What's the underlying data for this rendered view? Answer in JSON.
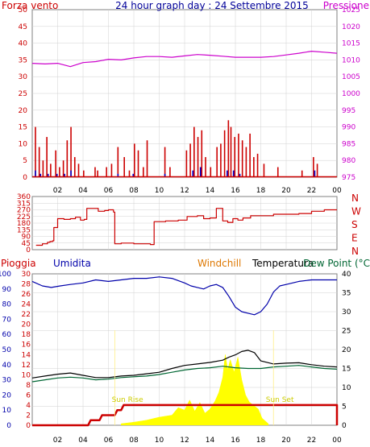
{
  "colors": {
    "wind": "#cc0000",
    "wind_avg": "#0000cc",
    "gust_alt": "#00aa00",
    "pressure": "#cc00cc",
    "direction": "#cc0000",
    "rain": "#cc0000",
    "humidity": "#0000aa",
    "windchill": "#dd7700",
    "temperature": "#000000",
    "dewpoint": "#006633",
    "solar": "#ffff00",
    "grid": "#d0d0d0",
    "frame": "#808080"
  },
  "chart_data": [
    {
      "type": "bar",
      "header": {
        "left": "Forza vento",
        "center": "24 hour graph day : 24 Settembre 2015",
        "right": "Pressione"
      },
      "x_ticks": [
        "02",
        "04",
        "06",
        "08",
        "10",
        "12",
        "14",
        "16",
        "18",
        "20",
        "22",
        "00"
      ],
      "y_left_ticks": [
        "50",
        "45",
        "40",
        "35",
        "30",
        "25",
        "20",
        "15",
        "10",
        "5",
        "0"
      ],
      "y_right_ticks": [
        "1025",
        "1020",
        "1015",
        "1010",
        "1005",
        "1000",
        "995",
        "990",
        "985",
        "980",
        "975"
      ],
      "ylim_left": [
        0,
        50
      ],
      "ylim_right": [
        975,
        1025
      ],
      "wind_bars": [
        [
          0.2,
          15
        ],
        [
          0.5,
          9
        ],
        [
          0.8,
          5
        ],
        [
          1.1,
          12
        ],
        [
          1.4,
          4
        ],
        [
          1.8,
          8
        ],
        [
          2.1,
          3
        ],
        [
          2.4,
          5
        ],
        [
          2.7,
          11
        ],
        [
          3.0,
          15
        ],
        [
          3.3,
          6
        ],
        [
          3.6,
          4
        ],
        [
          4.0,
          2
        ],
        [
          4.9,
          3
        ],
        [
          5.1,
          2
        ],
        [
          5.8,
          3
        ],
        [
          6.2,
          4
        ],
        [
          6.7,
          9
        ],
        [
          7.2,
          6
        ],
        [
          7.6,
          2
        ],
        [
          8.0,
          10
        ],
        [
          8.3,
          8
        ],
        [
          8.7,
          3
        ],
        [
          9.0,
          11
        ],
        [
          10.4,
          9
        ],
        [
          10.8,
          3
        ],
        [
          12.1,
          8
        ],
        [
          12.4,
          10
        ],
        [
          12.7,
          15
        ],
        [
          13.0,
          12
        ],
        [
          13.3,
          14
        ],
        [
          13.6,
          6
        ],
        [
          14.0,
          3
        ],
        [
          14.5,
          9
        ],
        [
          14.8,
          10
        ],
        [
          15.1,
          14
        ],
        [
          15.4,
          17
        ],
        [
          15.6,
          15
        ],
        [
          15.9,
          12
        ],
        [
          16.2,
          13
        ],
        [
          16.5,
          11
        ],
        [
          16.8,
          9
        ],
        [
          17.1,
          13
        ],
        [
          17.4,
          6
        ],
        [
          17.7,
          7
        ],
        [
          18.2,
          4
        ],
        [
          19.3,
          3
        ],
        [
          21.2,
          2
        ],
        [
          22.1,
          6
        ],
        [
          22.4,
          4
        ]
      ],
      "wind_avg_bars": [
        [
          0.2,
          2
        ],
        [
          0.6,
          1
        ],
        [
          1.2,
          1
        ],
        [
          1.9,
          1
        ],
        [
          2.5,
          1
        ],
        [
          3.0,
          2
        ],
        [
          6.7,
          1
        ],
        [
          7.9,
          1
        ],
        [
          10.4,
          1
        ],
        [
          12.6,
          2
        ],
        [
          13.2,
          3
        ],
        [
          15.3,
          2
        ],
        [
          15.8,
          2
        ],
        [
          16.3,
          1
        ],
        [
          22.2,
          2
        ]
      ],
      "pressure": [
        [
          0,
          1009
        ],
        [
          1,
          1008.8
        ],
        [
          2,
          1009
        ],
        [
          3,
          1008
        ],
        [
          4,
          1009.2
        ],
        [
          5,
          1009.5
        ],
        [
          6,
          1010.2
        ],
        [
          7,
          1010
        ],
        [
          8,
          1010.6
        ],
        [
          9,
          1011
        ],
        [
          10,
          1011
        ],
        [
          11,
          1010.8
        ],
        [
          12,
          1011.2
        ],
        [
          13,
          1011.6
        ],
        [
          14,
          1011.4
        ],
        [
          15,
          1011.1
        ],
        [
          16,
          1010.8
        ],
        [
          17,
          1010.8
        ],
        [
          18,
          1010.8
        ],
        [
          19,
          1011
        ],
        [
          20,
          1011.5
        ],
        [
          21,
          1012
        ],
        [
          22,
          1012.6
        ],
        [
          23,
          1012.3
        ],
        [
          24,
          1012
        ]
      ]
    },
    {
      "type": "line",
      "x_ticks": [
        "02",
        "04",
        "06",
        "08",
        "10",
        "12",
        "14",
        "16",
        "18",
        "20",
        "22",
        "00"
      ],
      "y_left_ticks": [
        "360",
        "315",
        "270",
        "225",
        "180",
        "135",
        "90",
        "45",
        "0"
      ],
      "y_right_labels": [
        "N",
        "W",
        "S",
        "E",
        "N"
      ],
      "ylim": [
        0,
        360
      ],
      "direction": [
        [
          0.3,
          30
        ],
        [
          0.8,
          40
        ],
        [
          1.2,
          50
        ],
        [
          1.4,
          55
        ],
        [
          1.6,
          60
        ],
        [
          1.7,
          150
        ],
        [
          2.0,
          210
        ],
        [
          2.5,
          205
        ],
        [
          3.0,
          210
        ],
        [
          3.4,
          220
        ],
        [
          3.8,
          200
        ],
        [
          4.1,
          205
        ],
        [
          4.3,
          280
        ],
        [
          4.8,
          280
        ],
        [
          5.2,
          260
        ],
        [
          5.7,
          265
        ],
        [
          6.0,
          270
        ],
        [
          6.4,
          255
        ],
        [
          6.5,
          40
        ],
        [
          7.0,
          45
        ],
        [
          8.0,
          40
        ],
        [
          9.0,
          40
        ],
        [
          9.3,
          35
        ],
        [
          9.6,
          190
        ],
        [
          10.5,
          195
        ],
        [
          11.5,
          200
        ],
        [
          12.2,
          225
        ],
        [
          13.0,
          230
        ],
        [
          13.5,
          210
        ],
        [
          14.0,
          215
        ],
        [
          14.5,
          280
        ],
        [
          15.0,
          195
        ],
        [
          15.4,
          185
        ],
        [
          15.8,
          210
        ],
        [
          16.2,
          200
        ],
        [
          16.6,
          215
        ],
        [
          17.2,
          230
        ],
        [
          18.0,
          230
        ],
        [
          19.0,
          240
        ],
        [
          20.0,
          240
        ],
        [
          21.0,
          245
        ],
        [
          22.0,
          260
        ],
        [
          23.0,
          270
        ],
        [
          24.0,
          270
        ]
      ]
    },
    {
      "type": "line",
      "header": {
        "rain": "Pioggia",
        "humidity": "Umidita",
        "windchill": "Windchill",
        "temperature": "Temperatura",
        "dewpoint": "Dew Point (°C"
      },
      "x_ticks": [
        "02",
        "04",
        "06",
        "08",
        "10",
        "12",
        "14",
        "16",
        "18",
        "20",
        "22",
        "00"
      ],
      "y_humidity_ticks": [
        "100",
        "90",
        "80",
        "70",
        "60",
        "50",
        "40",
        "30",
        "20",
        "10",
        "0"
      ],
      "y_rain_ticks": [
        "30",
        "28",
        "26",
        "24",
        "22",
        "20",
        "18",
        "16",
        "14",
        "12",
        "10",
        "8",
        "6",
        "4",
        "2",
        "0"
      ],
      "y_temp_ticks": [
        "40",
        "35",
        "30",
        "25",
        "20",
        "15",
        "10",
        "5",
        "0"
      ],
      "annotations": [
        "Sun Rise",
        "Sun Set"
      ],
      "humidity": [
        [
          0,
          95
        ],
        [
          0.8,
          92
        ],
        [
          1.5,
          91
        ],
        [
          2.2,
          92
        ],
        [
          3.0,
          93
        ],
        [
          4.0,
          94
        ],
        [
          5.0,
          96
        ],
        [
          6.0,
          95
        ],
        [
          7.0,
          96
        ],
        [
          8.0,
          97
        ],
        [
          9.0,
          97
        ],
        [
          10.0,
          98
        ],
        [
          11.0,
          97
        ],
        [
          12.0,
          94
        ],
        [
          12.5,
          92
        ],
        [
          13.0,
          91
        ],
        [
          13.5,
          90
        ],
        [
          14.0,
          92
        ],
        [
          14.5,
          93
        ],
        [
          15.0,
          91
        ],
        [
          15.5,
          85
        ],
        [
          16.0,
          78
        ],
        [
          16.5,
          75
        ],
        [
          17.0,
          74
        ],
        [
          17.5,
          73
        ],
        [
          18.0,
          75
        ],
        [
          18.5,
          80
        ],
        [
          19.0,
          88
        ],
        [
          19.5,
          92
        ],
        [
          20.0,
          93
        ],
        [
          20.5,
          94
        ],
        [
          21.0,
          95
        ],
        [
          22.0,
          96
        ],
        [
          23.0,
          96
        ],
        [
          24.0,
          96
        ]
      ],
      "temperature": [
        [
          0,
          12.5
        ],
        [
          1,
          13
        ],
        [
          2,
          13.5
        ],
        [
          3,
          13.8
        ],
        [
          4,
          13.2
        ],
        [
          5,
          12.6
        ],
        [
          6,
          12.6
        ],
        [
          7,
          13.0
        ],
        [
          8,
          13.2
        ],
        [
          9,
          13.6
        ],
        [
          10,
          14.0
        ],
        [
          11,
          15.0
        ],
        [
          12,
          15.8
        ],
        [
          13,
          16.2
        ],
        [
          14,
          16.6
        ],
        [
          15,
          17.2
        ],
        [
          15.5,
          18.0
        ],
        [
          16,
          18.6
        ],
        [
          16.5,
          19.5
        ],
        [
          17,
          19.8
        ],
        [
          17.5,
          19.2
        ],
        [
          18,
          17.0
        ],
        [
          19,
          16.2
        ],
        [
          20,
          16.4
        ],
        [
          21,
          16.5
        ],
        [
          22,
          16.0
        ],
        [
          23,
          15.6
        ],
        [
          24,
          15.4
        ]
      ],
      "dewpoint": [
        [
          0,
          11.5
        ],
        [
          1,
          12.0
        ],
        [
          2,
          12.5
        ],
        [
          3,
          12.7
        ],
        [
          4,
          12.5
        ],
        [
          5,
          12.0
        ],
        [
          6,
          12.2
        ],
        [
          7,
          12.6
        ],
        [
          8,
          12.8
        ],
        [
          9,
          13.0
        ],
        [
          10,
          13.4
        ],
        [
          11,
          14.0
        ],
        [
          12,
          14.6
        ],
        [
          13,
          15.0
        ],
        [
          14,
          15.2
        ],
        [
          15,
          15.6
        ],
        [
          16,
          15.2
        ],
        [
          17,
          15.0
        ],
        [
          18,
          15.0
        ],
        [
          19,
          15.4
        ],
        [
          20,
          15.6
        ],
        [
          21,
          15.8
        ],
        [
          22,
          15.4
        ],
        [
          23,
          15.0
        ],
        [
          24,
          14.8
        ]
      ],
      "rain": [
        [
          0,
          0
        ],
        [
          4.4,
          0
        ],
        [
          4.6,
          1
        ],
        [
          5.3,
          1
        ],
        [
          5.5,
          2
        ],
        [
          6.5,
          2
        ],
        [
          6.7,
          3
        ],
        [
          7.0,
          3
        ],
        [
          7.2,
          4
        ],
        [
          24,
          4
        ],
        [
          24,
          0
        ]
      ],
      "solar": [
        [
          7.0,
          0.3
        ],
        [
          8.0,
          0.6
        ],
        [
          9.0,
          1.0
        ],
        [
          10.0,
          1.6
        ],
        [
          11.0,
          2.0
        ],
        [
          11.5,
          3.5
        ],
        [
          12.0,
          3.0
        ],
        [
          12.4,
          5.0
        ],
        [
          12.8,
          2.8
        ],
        [
          13.2,
          4.5
        ],
        [
          13.6,
          2.4
        ],
        [
          14.0,
          3.2
        ],
        [
          14.4,
          4.8
        ],
        [
          14.7,
          6.5
        ],
        [
          15.0,
          9.5
        ],
        [
          15.2,
          14.0
        ],
        [
          15.4,
          11.0
        ],
        [
          15.6,
          13.0
        ],
        [
          15.9,
          10.5
        ],
        [
          16.2,
          13.5
        ],
        [
          16.5,
          9.0
        ],
        [
          16.8,
          6.0
        ],
        [
          17.1,
          4.6
        ],
        [
          17.4,
          4.0
        ],
        [
          17.8,
          3.2
        ],
        [
          18.1,
          1.4
        ],
        [
          18.6,
          0.3
        ]
      ]
    }
  ]
}
